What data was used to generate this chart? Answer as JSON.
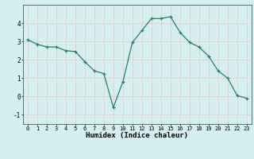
{
  "x": [
    0,
    1,
    2,
    3,
    4,
    5,
    6,
    7,
    8,
    9,
    10,
    11,
    12,
    13,
    14,
    15,
    16,
    17,
    18,
    19,
    20,
    21,
    22,
    23
  ],
  "y": [
    3.1,
    2.85,
    2.7,
    2.7,
    2.5,
    2.45,
    1.9,
    1.4,
    1.25,
    -0.6,
    0.8,
    2.95,
    3.6,
    4.25,
    4.25,
    4.35,
    3.5,
    2.95,
    2.7,
    2.2,
    1.4,
    1.0,
    0.05,
    -0.1
  ],
  "xlabel": "Humidex (Indice chaleur)",
  "xlim": [
    -0.5,
    23.5
  ],
  "ylim": [
    -1.5,
    5.0
  ],
  "yticks": [
    -1,
    0,
    1,
    2,
    3,
    4
  ],
  "xticks": [
    0,
    1,
    2,
    3,
    4,
    5,
    6,
    7,
    8,
    9,
    10,
    11,
    12,
    13,
    14,
    15,
    16,
    17,
    18,
    19,
    20,
    21,
    22,
    23
  ],
  "line_color": "#2d7d6e",
  "bg_color": "#d5eef0",
  "grid_color": "#c8dfe0"
}
